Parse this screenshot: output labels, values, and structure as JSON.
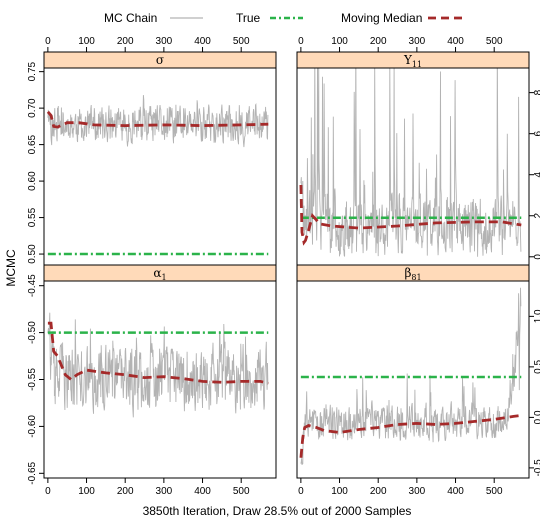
{
  "legend": {
    "items": [
      {
        "label": "MC Chain",
        "color": "#b3b3b3",
        "style": "solid"
      },
      {
        "label": "True",
        "color": "#2bb34a",
        "style": "dashdot"
      },
      {
        "label": "Moving Median",
        "color": "#a52a2a",
        "style": "dashed"
      }
    ]
  },
  "xlabel": "3850th Iteration, Draw 28.5% out of 2000 Samples",
  "ylabel": "MCMC",
  "colors": {
    "chain": "#b3b3b3",
    "true": "#2bb34a",
    "median": "#a52a2a",
    "strip": "#ffdab9"
  },
  "chart_data": [
    {
      "type": "line",
      "panel": "top-left",
      "strip_label": "σ",
      "xlim": [
        -10,
        590
      ],
      "ylim": [
        0.485,
        0.755
      ],
      "x_ticks": [
        0,
        100,
        200,
        300,
        400,
        500
      ],
      "y_ticks": [
        0.5,
        0.55,
        0.6,
        0.65,
        0.7,
        0.75
      ],
      "x_axis_side": "top",
      "y_axis_side": "left",
      "true_value": 0.5,
      "chain": {
        "n": 570,
        "base": 0.677,
        "noise": 0.022,
        "spike": 0.03,
        "seed": 11,
        "start": 0.69
      },
      "moving_median": {
        "x": [
          0,
          8,
          15,
          25,
          50,
          80,
          120,
          200,
          300,
          400,
          500,
          570
        ],
        "y": [
          0.695,
          0.69,
          0.675,
          0.674,
          0.68,
          0.68,
          0.677,
          0.676,
          0.677,
          0.676,
          0.677,
          0.678
        ]
      }
    },
    {
      "type": "line",
      "panel": "top-right",
      "strip_label": "Y",
      "strip_label_sub": "11",
      "xlim": [
        -10,
        590
      ],
      "ylim": [
        -0.4,
        9.2
      ],
      "x_ticks": [
        0,
        100,
        200,
        300,
        400,
        500
      ],
      "y_ticks": [
        0,
        2,
        4,
        6,
        8
      ],
      "x_axis_side": "top",
      "y_axis_side": "right",
      "true_value": 1.9,
      "chain": {
        "n": 570,
        "base": 1.6,
        "noise": 1.2,
        "spike": 6.5,
        "seed": 23,
        "start": 3.5,
        "floor": 0.0
      },
      "moving_median": {
        "x": [
          0,
          3,
          8,
          12,
          20,
          30,
          50,
          80,
          150,
          250,
          350,
          450,
          520,
          570
        ],
        "y": [
          3.5,
          1.2,
          0.7,
          0.8,
          1.3,
          2.0,
          1.6,
          1.5,
          1.4,
          1.5,
          1.65,
          1.7,
          1.7,
          1.55
        ]
      }
    },
    {
      "type": "line",
      "panel": "bottom-left",
      "strip_label": "α",
      "strip_label_sub": "1",
      "xlim": [
        -10,
        590
      ],
      "ylim": [
        -0.655,
        -0.445
      ],
      "x_ticks": [
        0,
        100,
        200,
        300,
        400,
        500
      ],
      "y_ticks": [
        -0.65,
        -0.6,
        -0.55,
        -0.5,
        -0.45
      ],
      "x_axis_side": "bottom",
      "y_axis_side": "left",
      "true_value": -0.5,
      "chain": {
        "n": 570,
        "base": -0.55,
        "noise": 0.03,
        "spike": 0.05,
        "seed": 37,
        "start": -0.49
      },
      "moving_median": {
        "x": [
          0,
          8,
          15,
          25,
          45,
          60,
          75,
          100,
          150,
          200,
          250,
          300,
          350,
          400,
          450,
          500,
          550,
          570
        ],
        "y": [
          -0.49,
          -0.49,
          -0.52,
          -0.525,
          -0.545,
          -0.55,
          -0.545,
          -0.54,
          -0.543,
          -0.545,
          -0.548,
          -0.547,
          -0.549,
          -0.552,
          -0.553,
          -0.552,
          -0.552,
          -0.554
        ]
      }
    },
    {
      "type": "line",
      "panel": "bottom-right",
      "strip_label": "β",
      "strip_label_sub": "81",
      "xlim": [
        -10,
        590
      ],
      "ylim": [
        -0.6,
        1.35
      ],
      "x_ticks": [
        0,
        100,
        200,
        300,
        400,
        500
      ],
      "y_ticks": [
        -0.5,
        0.0,
        0.5,
        1.0
      ],
      "x_axis_side": "bottom",
      "y_axis_side": "right",
      "true_value": 0.4,
      "chain": {
        "n": 570,
        "base": -0.05,
        "noise": 0.15,
        "spike": 0.35,
        "seed": 53,
        "start": -0.4,
        "tail_rise": 1.2
      },
      "moving_median": {
        "x": [
          0,
          5,
          10,
          20,
          40,
          60,
          100,
          150,
          200,
          250,
          300,
          350,
          400,
          450,
          500,
          550,
          570
        ],
        "y": [
          -0.4,
          -0.2,
          -0.1,
          -0.08,
          -0.1,
          -0.13,
          -0.15,
          -0.12,
          -0.1,
          -0.07,
          -0.06,
          -0.07,
          -0.06,
          -0.04,
          -0.02,
          0.01,
          0.02
        ]
      }
    }
  ]
}
